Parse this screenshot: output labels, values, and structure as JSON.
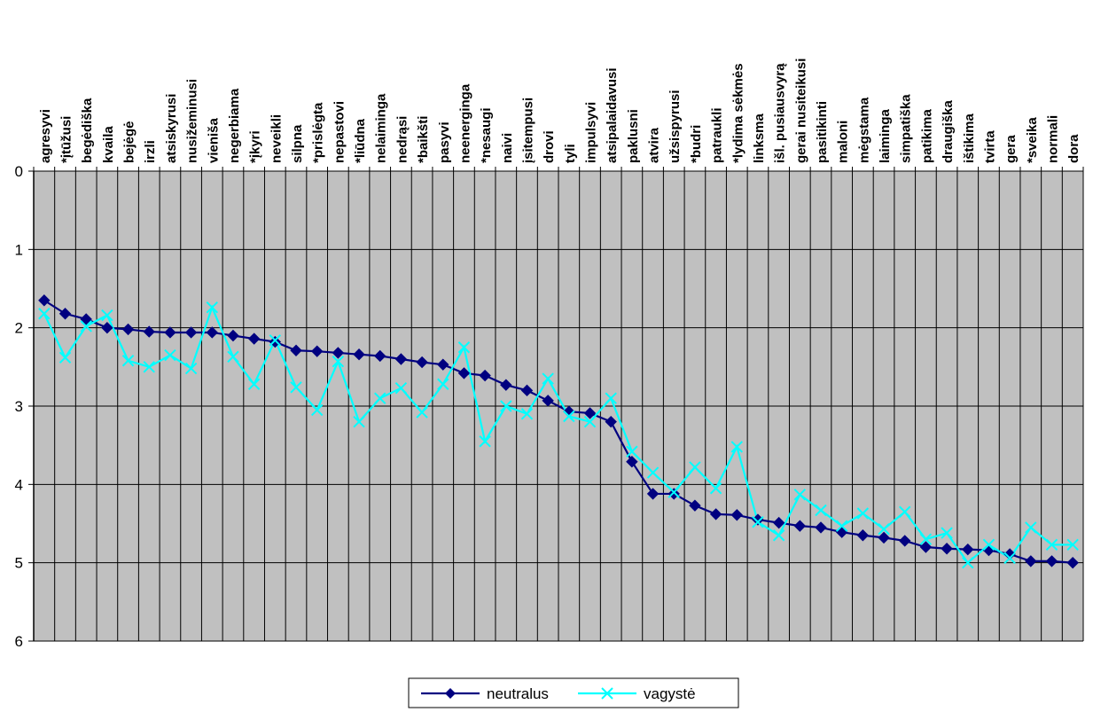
{
  "chart_data": {
    "type": "line",
    "title": "",
    "xlabel": "",
    "ylabel": "",
    "ylim": [
      0,
      6
    ],
    "y_inverted": true,
    "y_ticks": [
      "0",
      "1",
      "2",
      "3",
      "4",
      "5",
      "6"
    ],
    "grid": true,
    "plot_background": "#c0c0c0",
    "legend_position": "bottom",
    "categories": [
      "agresyvi",
      "*įtūžusi",
      "begėdiška",
      "kvaila",
      "bejėgė",
      "irzli",
      "atsiskyrusi",
      "nusižeminusi",
      "vieniša",
      "negerbiama",
      "*įkyri",
      "neveikli",
      "silpna",
      "*prislėgta",
      "nepastovi",
      "*liūdna",
      "nelaiminga",
      "nedrąsi",
      "*baikšti",
      "pasyvi",
      "neenerginga",
      "*nesaugi",
      "naivi",
      "įsitempusi",
      "drovi",
      "tyli",
      "impulsyvi",
      "atsipalaidavusi",
      "paklusni",
      "atvira",
      "užsispyrusi",
      "*budri",
      "patraukli",
      "*lydima sėkmės",
      "linksma",
      "išl. pusiausvyrą",
      "gerai nusiteikusi",
      "pasitikinti",
      "maloni",
      "mėgstama",
      "laiminga",
      "simpatiška",
      "patikima",
      "draugiška",
      "ištikima",
      "tvirta",
      "gera",
      "*sveika",
      "normali",
      "dora"
    ],
    "series": [
      {
        "name": "neutralus",
        "color": "#000080",
        "marker": "diamond",
        "values": [
          1.65,
          1.82,
          1.89,
          2.0,
          2.02,
          2.05,
          2.06,
          2.06,
          2.06,
          2.1,
          2.14,
          2.18,
          2.29,
          2.3,
          2.32,
          2.34,
          2.36,
          2.4,
          2.44,
          2.47,
          2.58,
          2.61,
          2.73,
          2.8,
          2.93,
          3.07,
          3.09,
          3.2,
          3.71,
          4.12,
          4.12,
          4.27,
          4.38,
          4.39,
          4.45,
          4.49,
          4.53,
          4.55,
          4.61,
          4.65,
          4.68,
          4.72,
          4.8,
          4.82,
          4.83,
          4.84,
          4.89,
          4.98,
          4.98,
          5.0
        ]
      },
      {
        "name": "vagystė",
        "color": "#00ffff",
        "marker": "x",
        "values": [
          1.82,
          2.38,
          1.98,
          1.84,
          2.42,
          2.5,
          2.35,
          2.52,
          1.74,
          2.37,
          2.72,
          2.16,
          2.76,
          3.05,
          2.43,
          3.2,
          2.9,
          2.77,
          3.08,
          2.72,
          2.25,
          3.45,
          3.0,
          3.1,
          2.65,
          3.13,
          3.2,
          2.9,
          3.58,
          3.85,
          4.1,
          3.78,
          4.05,
          3.52,
          4.48,
          4.65,
          4.13,
          4.33,
          4.53,
          4.37,
          4.57,
          4.35,
          4.7,
          4.62,
          5.0,
          4.77,
          4.94,
          4.55,
          4.77,
          4.77
        ]
      }
    ]
  }
}
